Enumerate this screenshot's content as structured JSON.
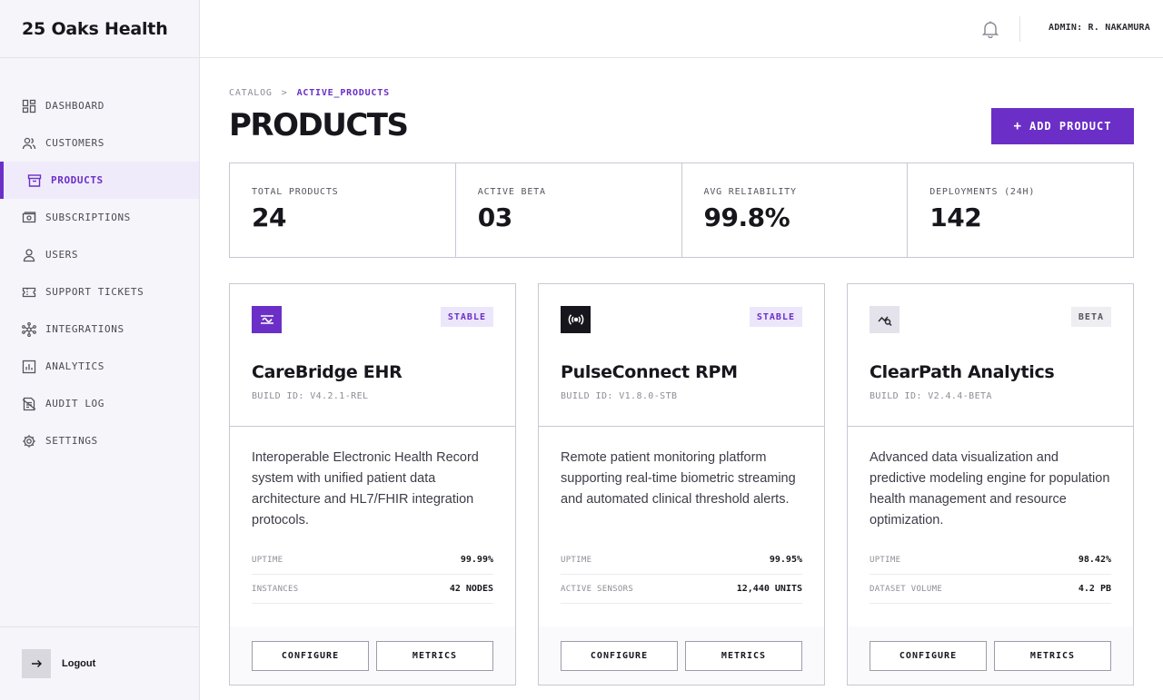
{
  "brand": {
    "name": "25 Oaks Health"
  },
  "sidebar": {
    "items": [
      {
        "label": "DASHBOARD",
        "icon": "dashboard-icon"
      },
      {
        "label": "CUSTOMERS",
        "icon": "users-group-icon"
      },
      {
        "label": "PRODUCTS",
        "icon": "archive-box-icon",
        "active": true
      },
      {
        "label": "SUBSCRIPTIONS",
        "icon": "money-icon"
      },
      {
        "label": "USERS",
        "icon": "user-icon"
      },
      {
        "label": "SUPPORT TICKETS",
        "icon": "ticket-icon"
      },
      {
        "label": "INTEGRATIONS",
        "icon": "network-icon"
      },
      {
        "label": "ANALYTICS",
        "icon": "bar-chart-icon"
      },
      {
        "label": "AUDIT LOG",
        "icon": "audit-log-icon"
      },
      {
        "label": "SETTINGS",
        "icon": "gear-icon"
      }
    ],
    "logout_label": "Logout"
  },
  "header": {
    "user_label": "ADMIN: R. NAKAMURA"
  },
  "breadcrumb": {
    "root": "CATALOG",
    "separator": ">",
    "current": "ACTIVE_PRODUCTS"
  },
  "page": {
    "title": "PRODUCTS",
    "add_button_label": "ADD PRODUCT",
    "add_button_icon": "+"
  },
  "stats": [
    {
      "label": "TOTAL PRODUCTS",
      "value": "24"
    },
    {
      "label": "ACTIVE BETA",
      "value": "03"
    },
    {
      "label": "AVG RELIABILITY",
      "value": "99.8%"
    },
    {
      "label": "DEPLOYMENTS (24H)",
      "value": "142"
    }
  ],
  "products": [
    {
      "name": "CareBridge EHR",
      "build": "BUILD ID: V4.2.1-REL",
      "badge": "STABLE",
      "icon": "sliders-icon",
      "description": "Interoperable Electronic Health Record system with unified patient data architecture and HL7/FHIR integration protocols.",
      "metrics": [
        {
          "label": "UPTIME",
          "value": "99.99%"
        },
        {
          "label": "INSTANCES",
          "value": "42 NODES"
        }
      ],
      "configure_label": "CONFIGURE",
      "metrics_label": "METRICS"
    },
    {
      "name": "PulseConnect RPM",
      "build": "BUILD ID: V1.8.0-STB",
      "badge": "STABLE",
      "icon": "broadcast-icon",
      "description": "Remote patient monitoring platform supporting real-time biometric streaming and automated clinical threshold alerts.",
      "metrics": [
        {
          "label": "UPTIME",
          "value": "99.95%"
        },
        {
          "label": "ACTIVE SENSORS",
          "value": "12,440 UNITS"
        }
      ],
      "configure_label": "CONFIGURE",
      "metrics_label": "METRICS"
    },
    {
      "name": "ClearPath Analytics",
      "build": "BUILD ID: V2.4.4-BETA",
      "badge": "BETA",
      "icon": "chart-search-icon",
      "description": "Advanced data visualization and predictive modeling engine for population health management and resource optimization.",
      "metrics": [
        {
          "label": "UPTIME",
          "value": "98.42%"
        },
        {
          "label": "DATASET VOLUME",
          "value": "4.2 PB"
        }
      ],
      "configure_label": "CONFIGURE",
      "metrics_label": "METRICS"
    }
  ],
  "colors": {
    "accent": "#6b2fc7",
    "badge_stable_bg": "#ece6fb",
    "badge_beta_bg": "#eeedf2",
    "sidebar_bg": "#f6f5f9"
  }
}
